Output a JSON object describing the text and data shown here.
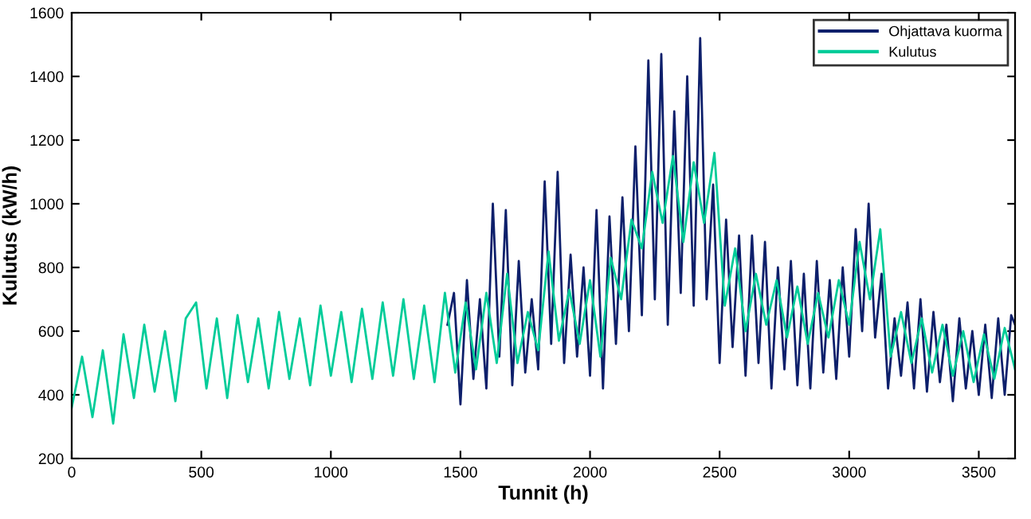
{
  "chart_data": {
    "type": "line",
    "xlabel": "Tunnit (h)",
    "ylabel": "Kulutus (kW/h)",
    "xlim": [
      0,
      3640
    ],
    "xticks": [
      0,
      500,
      1000,
      1500,
      2000,
      2500,
      3000,
      3500
    ],
    "ylim": [
      200,
      1600
    ],
    "yticks": [
      200,
      400,
      600,
      800,
      1000,
      1200,
      1400,
      1600
    ],
    "grid": false,
    "legend": "top right",
    "marker": "none",
    "line_style": "solid",
    "series": [
      {
        "name": "Ohjattava kuorma",
        "color": "#0d1f6b",
        "x": [
          1450,
          1475,
          1500,
          1525,
          1550,
          1575,
          1600,
          1625,
          1650,
          1675,
          1700,
          1725,
          1750,
          1775,
          1800,
          1825,
          1850,
          1875,
          1900,
          1925,
          1950,
          1975,
          2000,
          2025,
          2050,
          2075,
          2100,
          2125,
          2150,
          2175,
          2200,
          2225,
          2250,
          2275,
          2300,
          2325,
          2350,
          2375,
          2400,
          2425,
          2450,
          2475,
          2500,
          2525,
          2550,
          2575,
          2600,
          2625,
          2650,
          2675,
          2700,
          2725,
          2750,
          2775,
          2800,
          2825,
          2850,
          2875,
          2900,
          2925,
          2950,
          2975,
          3000,
          3025,
          3050,
          3075,
          3100,
          3125,
          3150,
          3175,
          3200,
          3225,
          3250,
          3275,
          3300,
          3325,
          3350,
          3375,
          3400,
          3425,
          3450,
          3475,
          3500,
          3525,
          3550,
          3575,
          3600,
          3625,
          3640
        ],
        "values": [
          620,
          720,
          370,
          760,
          450,
          700,
          420,
          1000,
          520,
          980,
          430,
          820,
          470,
          700,
          480,
          1070,
          560,
          1100,
          500,
          840,
          520,
          800,
          460,
          980,
          420,
          960,
          560,
          1020,
          600,
          1180,
          650,
          1450,
          700,
          1470,
          620,
          1290,
          720,
          1400,
          680,
          1520,
          700,
          1060,
          500,
          950,
          550,
          900,
          460,
          900,
          500,
          880,
          420,
          800,
          480,
          820,
          430,
          780,
          420,
          820,
          470,
          760,
          450,
          800,
          520,
          920,
          600,
          1000,
          580,
          780,
          420,
          640,
          460,
          690,
          420,
          700,
          410,
          660,
          440,
          620,
          380,
          640,
          420,
          600,
          400,
          620,
          390,
          640,
          400,
          650,
          620
        ]
      },
      {
        "name": "Kulutus",
        "color": "#00cc99",
        "x": [
          0,
          40,
          80,
          120,
          160,
          200,
          240,
          280,
          320,
          360,
          400,
          440,
          480,
          520,
          560,
          600,
          640,
          680,
          720,
          760,
          800,
          840,
          880,
          920,
          960,
          1000,
          1040,
          1080,
          1120,
          1160,
          1200,
          1240,
          1280,
          1320,
          1360,
          1400,
          1440,
          1480,
          1520,
          1560,
          1600,
          1640,
          1680,
          1720,
          1760,
          1800,
          1840,
          1880,
          1920,
          1960,
          2000,
          2040,
          2080,
          2120,
          2160,
          2200,
          2240,
          2280,
          2320,
          2360,
          2400,
          2440,
          2480,
          2520,
          2560,
          2600,
          2640,
          2680,
          2720,
          2760,
          2800,
          2840,
          2880,
          2920,
          2960,
          3000,
          3040,
          3080,
          3120,
          3160,
          3200,
          3240,
          3280,
          3320,
          3360,
          3400,
          3440,
          3480,
          3520,
          3560,
          3600,
          3640
        ],
        "values": [
          360,
          520,
          330,
          540,
          310,
          590,
          390,
          620,
          410,
          600,
          380,
          640,
          690,
          420,
          640,
          390,
          650,
          440,
          640,
          420,
          660,
          450,
          640,
          430,
          680,
          460,
          660,
          440,
          670,
          450,
          690,
          460,
          700,
          450,
          680,
          440,
          720,
          470,
          690,
          480,
          720,
          500,
          780,
          500,
          660,
          540,
          850,
          570,
          730,
          560,
          760,
          520,
          830,
          700,
          950,
          860,
          1100,
          940,
          1150,
          880,
          1130,
          940,
          1160,
          680,
          860,
          600,
          780,
          620,
          760,
          580,
          740,
          560,
          720,
          580,
          760,
          620,
          880,
          700,
          920,
          520,
          660,
          500,
          640,
          470,
          620,
          460,
          600,
          440,
          590,
          450,
          610,
          480
        ]
      }
    ]
  }
}
